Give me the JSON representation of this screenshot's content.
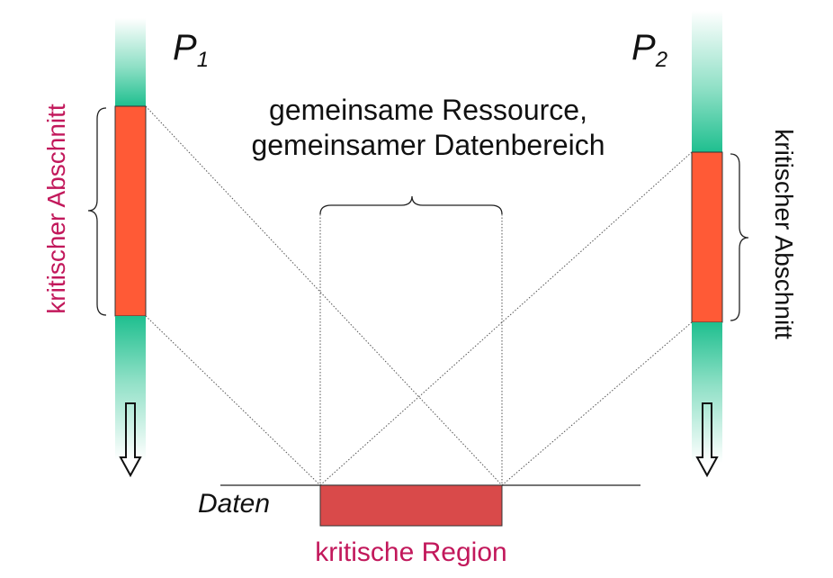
{
  "process_1": {
    "label_main": "P",
    "label_sub": "1"
  },
  "process_2": {
    "label_main": "P",
    "label_sub": "2"
  },
  "left_section_label": "kritischer Abschnitt",
  "right_section_label": "kritischer Abschnitt",
  "shared_label_line1": "gemeinsame Ressource,",
  "shared_label_line2": "gemeinsamer Datenbereich",
  "data_label": "Daten",
  "region_label": "kritische Region",
  "colors": {
    "critical": "#ff5a36",
    "region": "#d94a4a",
    "teal": "#1fbf8f",
    "left_label": "#c2185b",
    "right_label": "#111111"
  }
}
